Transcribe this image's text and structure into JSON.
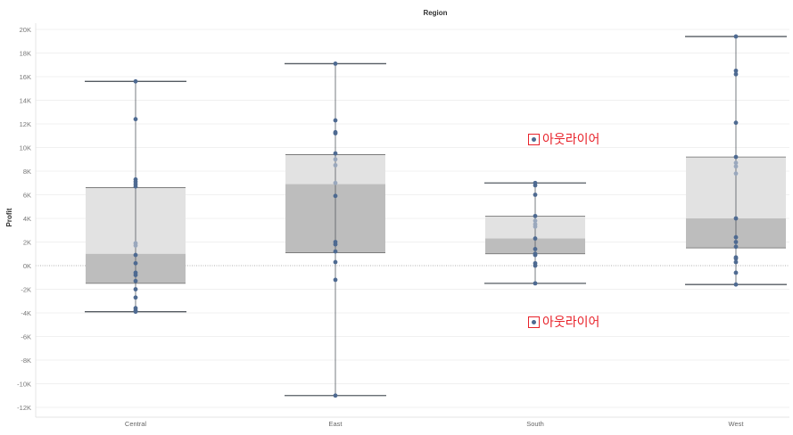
{
  "chart_data": {
    "type": "boxplot",
    "title": "Region",
    "ylabel": "Profit",
    "ylim": [
      -12500,
      20000
    ],
    "y_ticks": [
      {
        "value": 20000,
        "label": "20K"
      },
      {
        "value": 18000,
        "label": "18K"
      },
      {
        "value": 16000,
        "label": "16K"
      },
      {
        "value": 14000,
        "label": "14K"
      },
      {
        "value": 12000,
        "label": "12K"
      },
      {
        "value": 10000,
        "label": "10K"
      },
      {
        "value": 8000,
        "label": "8K"
      },
      {
        "value": 6000,
        "label": "6K"
      },
      {
        "value": 4000,
        "label": "4K"
      },
      {
        "value": 2000,
        "label": "2K"
      },
      {
        "value": 0,
        "label": "0K"
      },
      {
        "value": -2000,
        "label": "-2K"
      },
      {
        "value": -4000,
        "label": "-4K"
      },
      {
        "value": -6000,
        "label": "-6K"
      },
      {
        "value": -8000,
        "label": "-8K"
      },
      {
        "value": -10000,
        "label": "-10K"
      },
      {
        "value": -12000,
        "label": "-12K"
      }
    ],
    "categories": [
      "Central",
      "East",
      "South",
      "West"
    ],
    "boxes": [
      {
        "category": "Central",
        "whisker_low": -3900,
        "q1": -1500,
        "median": 1000,
        "q3": 6600,
        "whisker_high": 15600,
        "points": [
          15600,
          12400,
          7300,
          7100,
          6900,
          6700,
          1900,
          1700,
          900,
          200,
          -600,
          -800,
          -1300,
          -2000,
          -2700,
          -3600,
          -3800,
          -3900
        ]
      },
      {
        "category": "East",
        "whisker_low": -11000,
        "q1": 1100,
        "median": 6900,
        "q3": 9400,
        "whisker_high": 17100,
        "points": [
          17100,
          12300,
          11300,
          11200,
          9500,
          9000,
          8500,
          7000,
          5900,
          2000,
          1800,
          1200,
          300,
          -1200,
          -11000
        ]
      },
      {
        "category": "South",
        "whisker_low": -1500,
        "q1": 1000,
        "median": 2300,
        "q3": 4200,
        "whisker_high": 7000,
        "points": [
          7000,
          6800,
          6000,
          4200,
          3800,
          3500,
          3300,
          2300,
          1400,
          1000,
          900,
          200,
          0,
          -1500
        ]
      },
      {
        "category": "West",
        "whisker_low": -1600,
        "q1": 1500,
        "median": 4000,
        "q3": 9200,
        "whisker_high": 19400,
        "points": [
          19400,
          16500,
          16200,
          12100,
          9200,
          8700,
          8400,
          7800,
          4000,
          2400,
          2000,
          1600,
          700,
          600,
          300,
          -600,
          -1600
        ]
      }
    ],
    "annotations": [
      {
        "text": "아웃라이어",
        "value": 10800,
        "category": "South"
      },
      {
        "text": "아웃라이어",
        "value": -4600,
        "category": "South"
      }
    ],
    "grid": true
  },
  "colors": {
    "upper_box": "#e2e2e2",
    "lower_box": "#bdbdbd",
    "whisker": "#555b62",
    "point": "#4e6a91",
    "point_light": "#9aa8bd",
    "annotation": "#e8222a"
  }
}
